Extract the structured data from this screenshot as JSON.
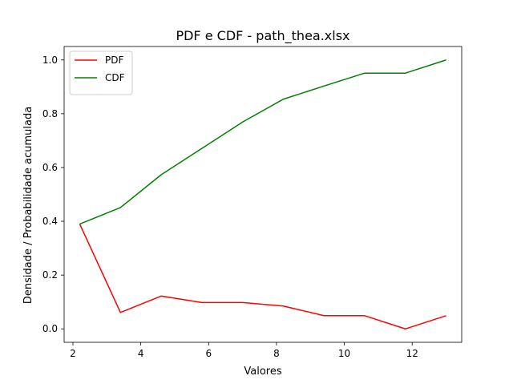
{
  "chart_data": {
    "type": "line",
    "title": "PDF e CDF - path_thea.xlsx",
    "xlabel": "Valores",
    "ylabel": "Densidade / Probabilidade acumulada",
    "xlim": [
      1.74,
      13.46
    ],
    "ylim": [
      -0.05,
      1.05
    ],
    "xticks": [
      2,
      4,
      6,
      8,
      10,
      12
    ],
    "yticks": [
      0.0,
      0.2,
      0.4,
      0.6,
      0.8,
      1.0
    ],
    "xtick_labels": [
      "2",
      "4",
      "6",
      "8",
      "10",
      "12"
    ],
    "ytick_labels": [
      "0.0",
      "0.2",
      "0.4",
      "0.6",
      "0.8",
      "1.0"
    ],
    "legend_position": "top-left",
    "grid": false,
    "series": [
      {
        "name": "PDF",
        "color": "#ff0000",
        "x": [
          2.2,
          3.4,
          4.6,
          5.8,
          7.0,
          8.2,
          9.4,
          10.6,
          11.8,
          13.0
        ],
        "y": [
          0.39,
          0.061,
          0.122,
          0.098,
          0.098,
          0.085,
          0.049,
          0.049,
          0.0,
          0.049
        ]
      },
      {
        "name": "CDF",
        "color": "#008000",
        "x": [
          2.2,
          3.4,
          4.6,
          5.8,
          7.0,
          8.2,
          9.4,
          10.6,
          11.8,
          13.0
        ],
        "y": [
          0.39,
          0.451,
          0.573,
          0.671,
          0.769,
          0.854,
          0.903,
          0.951,
          0.951,
          1.0
        ]
      }
    ]
  }
}
